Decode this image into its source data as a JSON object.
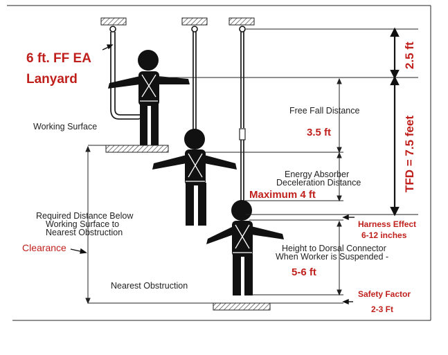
{
  "lanyard_title": {
    "line1": "6 ft. FF EA",
    "line2": "Lanyard"
  },
  "labels": {
    "working_surface": "Working Surface",
    "free_fall_distance": "Free Fall Distance",
    "free_fall_value": "3.5 ft",
    "energy_absorber_line1": "Energy Absorber",
    "energy_absorber_line2": "Deceleration Distance",
    "maximum": "Maximum 4 ft",
    "required_line1": "Required Distance Below",
    "required_line2": "Working Surface to",
    "required_line3": "Nearest Obstruction",
    "clearance": "Clearance",
    "harness_effect_line1": "Harness Effect",
    "harness_effect_line2": "6-12 inches",
    "dorsal_line1": "Height to Dorsal Connector",
    "dorsal_line2": "When Worker is Suspended -",
    "dorsal_value": "5-6 ft",
    "nearest_obstruction": "Nearest Obstruction",
    "safety_factor_line1": "Safety Factor",
    "safety_factor_line2": "2-3 Ft"
  },
  "dimensions": {
    "top_segment": "2.5 ft",
    "tfd": "TFD = 7.5 feet"
  },
  "colors": {
    "accent": "#c0201c",
    "ink": "#111111"
  }
}
